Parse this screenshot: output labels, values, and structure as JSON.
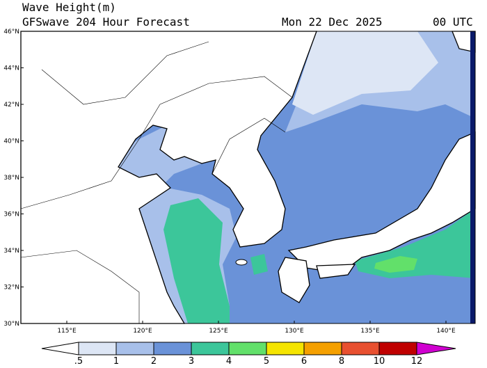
{
  "header": {
    "title": "Wave Height(m)",
    "subtitle": "GFSwave 204 Hour Forecast",
    "date": "Mon 22 Dec 2025",
    "time": "00 UTC"
  },
  "latitude_labels": [
    "30°N",
    "32°N",
    "34°N",
    "36°N",
    "38°N",
    "40°N",
    "42°N",
    "44°N",
    "46°N"
  ],
  "longitude_labels": [
    "115°E",
    "120°E",
    "125°E",
    "130°E",
    "135°E",
    "140°E"
  ],
  "colorbar": {
    "labels": [
      ".5",
      "1",
      "2",
      "3",
      "4",
      "5",
      "6",
      "8",
      "10",
      "12"
    ]
  }
}
